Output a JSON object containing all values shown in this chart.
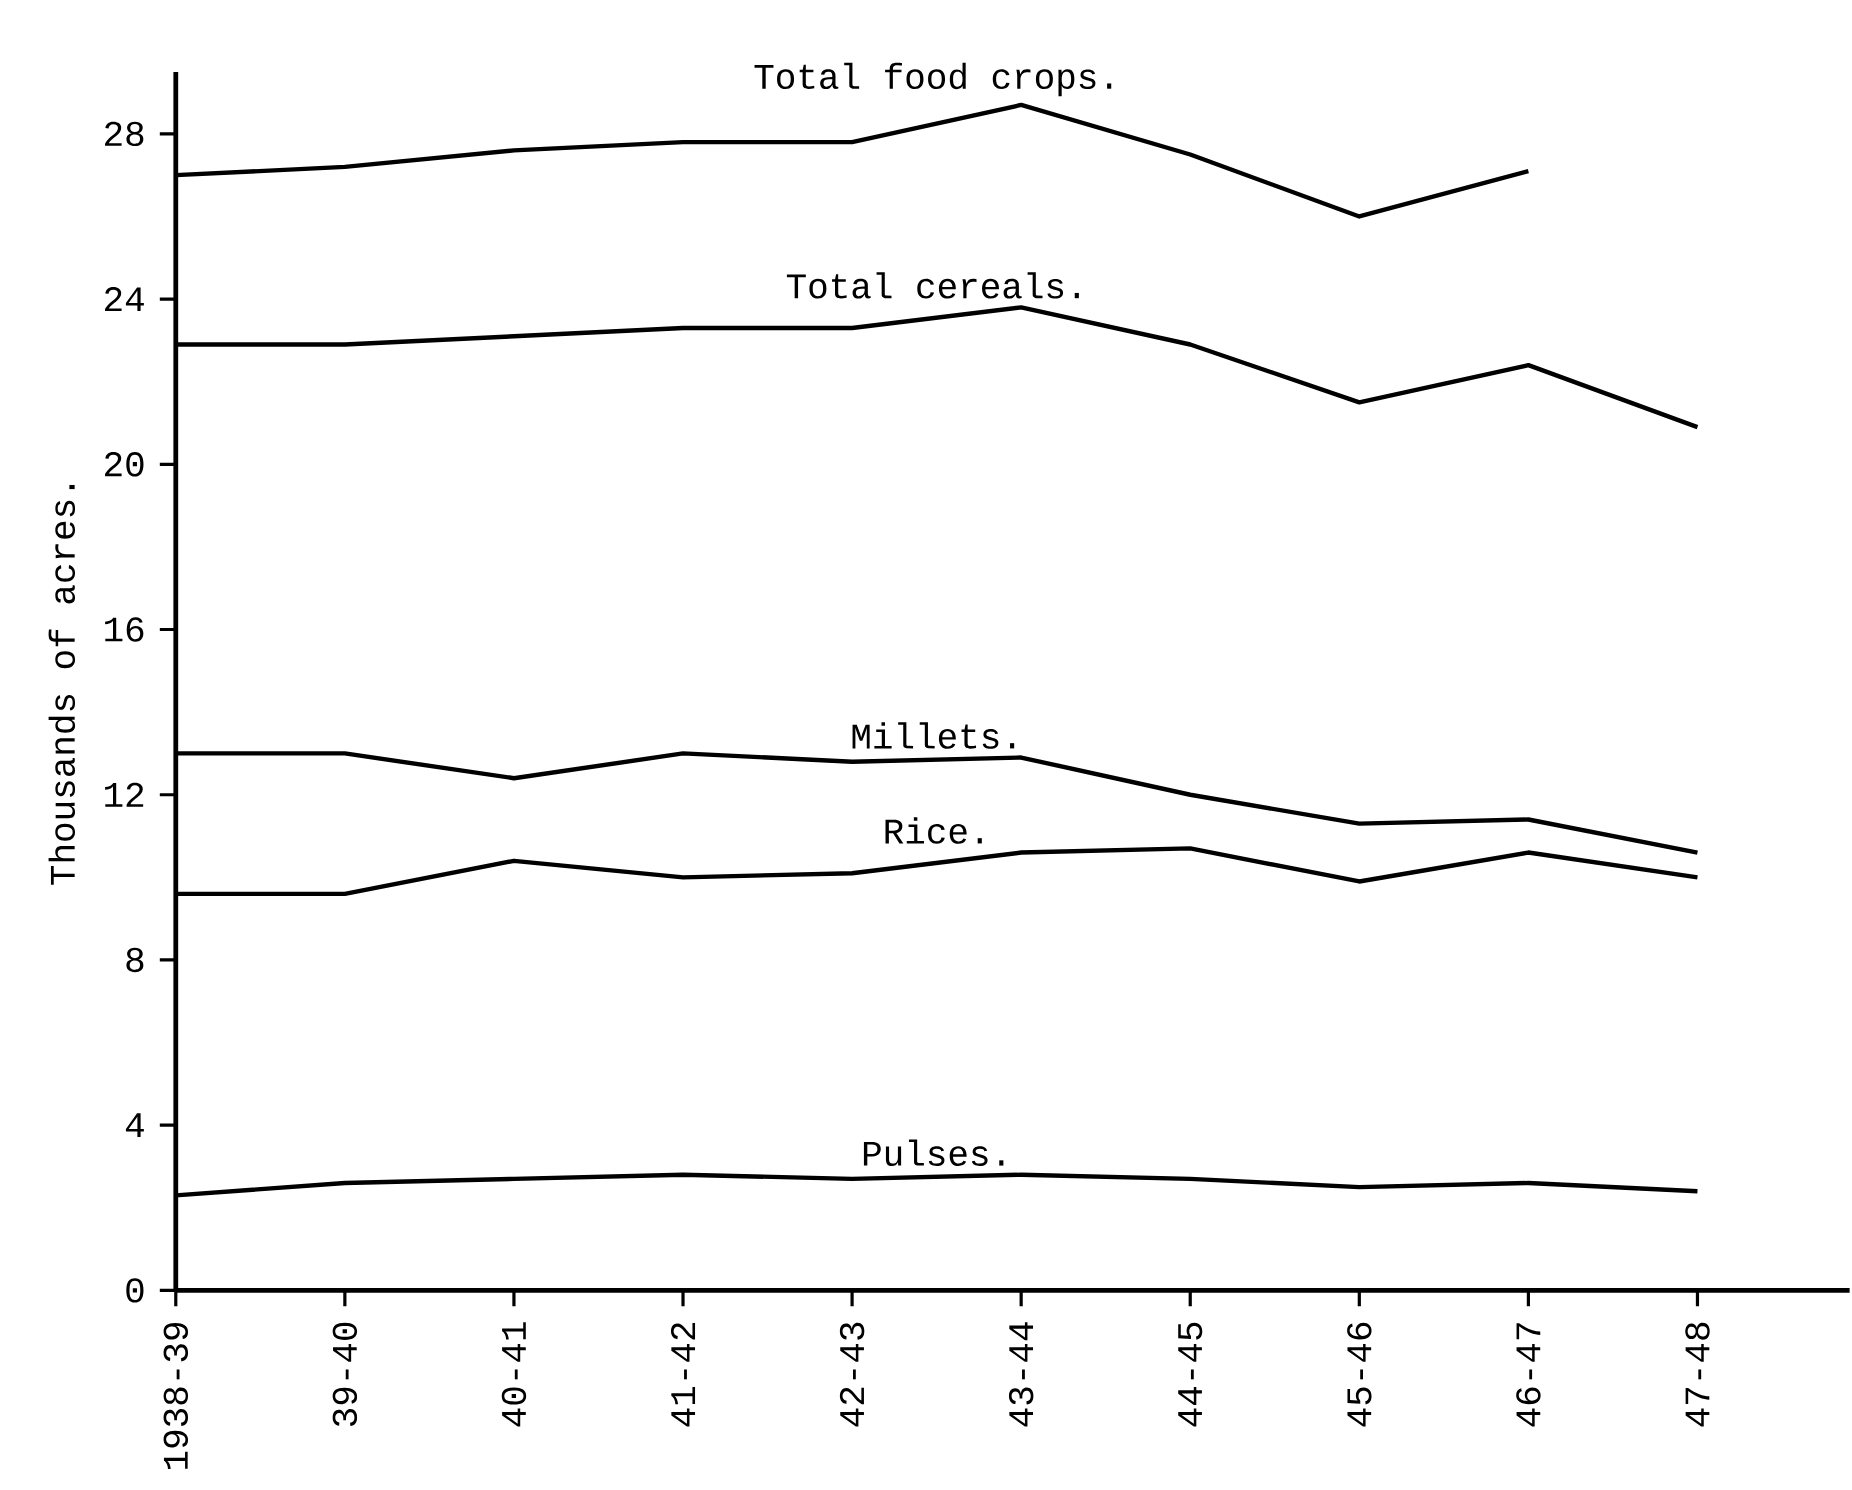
{
  "chart_data": {
    "type": "line",
    "ylabel": "Thousands of acres.",
    "categories": [
      "1938-39",
      "39-40",
      "40-41",
      "41-42",
      "42-43",
      "43-44",
      "44-45",
      "45-46",
      "46-47",
      "47-48"
    ],
    "series": [
      {
        "name": "Total food crops.",
        "color": "#000000",
        "values": [
          27.0,
          27.2,
          27.6,
          27.8,
          27.8,
          28.7,
          27.5,
          26.0,
          27.1,
          null
        ]
      },
      {
        "name": "Total cereals.",
        "color": "#000000",
        "values": [
          22.9,
          22.9,
          23.1,
          23.3,
          23.3,
          23.8,
          22.9,
          21.5,
          22.4,
          20.9
        ]
      },
      {
        "name": "Millets.",
        "color": "#000000",
        "values": [
          13.0,
          13.0,
          12.4,
          13.0,
          12.8,
          12.9,
          12.0,
          11.3,
          11.4,
          10.6
        ]
      },
      {
        "name": "Rice.",
        "color": "#000000",
        "values": [
          9.6,
          9.6,
          10.4,
          10.0,
          10.1,
          10.6,
          10.7,
          9.9,
          10.6,
          10.0
        ]
      },
      {
        "name": "Pulses.",
        "color": "#000000",
        "values": [
          2.3,
          2.6,
          2.7,
          2.8,
          2.7,
          2.8,
          2.7,
          2.5,
          2.6,
          2.4
        ]
      }
    ],
    "ylim": [
      0,
      29.5
    ],
    "yticks": [
      0,
      4,
      8,
      12,
      16,
      20,
      24,
      28
    ]
  }
}
